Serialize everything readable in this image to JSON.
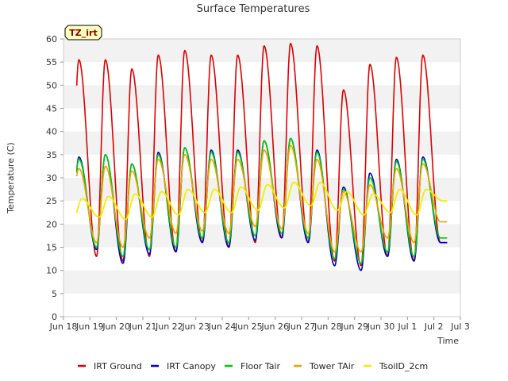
{
  "chart_data": {
    "type": "line",
    "title": "Surface Temperatures",
    "xlabel": "Time",
    "ylabel": "Temperature (C)",
    "badge": "TZ_irt",
    "ylim": [
      0,
      60
    ],
    "yticks": [
      0,
      5,
      10,
      15,
      20,
      25,
      30,
      35,
      40,
      45,
      50,
      55,
      60
    ],
    "xlim": [
      0,
      15
    ],
    "xticks": [
      {
        "x": 0,
        "label": "Jun 18"
      },
      {
        "x": 1,
        "label": "Jun 19"
      },
      {
        "x": 2,
        "label": "Jun 20"
      },
      {
        "x": 3,
        "label": "Jun 21"
      },
      {
        "x": 4,
        "label": "Jun 22"
      },
      {
        "x": 5,
        "label": "Jun 23"
      },
      {
        "x": 6,
        "label": "Jun 24"
      },
      {
        "x": 7,
        "label": "Jun 25"
      },
      {
        "x": 8,
        "label": "Jun 26"
      },
      {
        "x": 9,
        "label": "Jun 27"
      },
      {
        "x": 10,
        "label": "Jun 28"
      },
      {
        "x": 11,
        "label": "Jun 29"
      },
      {
        "x": 12,
        "label": "Jun 30"
      },
      {
        "x": 13,
        "label": "Jul 1"
      },
      {
        "x": 14,
        "label": "Jul 2"
      },
      {
        "x": 15,
        "label": "Jul 3"
      }
    ],
    "grid": true,
    "legend_position": "bottom",
    "series": [
      {
        "name": "IRT Ground",
        "color": "#e00000",
        "width": 1.6,
        "daily_min": [
          15,
          13,
          12,
          13,
          14,
          16,
          15,
          16,
          17,
          16,
          12,
          11,
          13,
          12,
          16
        ],
        "daily_max": [
          55.5,
          55.5,
          53.5,
          56.5,
          57.5,
          56.5,
          56.5,
          58.5,
          59,
          58.5,
          49,
          54.5,
          56,
          56.5
        ]
      },
      {
        "name": "IRT Canopy",
        "color": "#0000cc",
        "width": 1.6,
        "daily_min": [
          12,
          14.5,
          11.5,
          13.5,
          14,
          16,
          15,
          16.5,
          17,
          16,
          11,
          10,
          13,
          12,
          16
        ],
        "daily_max": [
          34.5,
          35,
          33,
          35.5,
          36.5,
          36,
          36,
          38,
          38.5,
          36,
          28,
          31,
          34,
          34.5
        ]
      },
      {
        "name": "Floor Tair",
        "color": "#00cc00",
        "width": 1.6,
        "daily_min": [
          13,
          15,
          13,
          14.5,
          15,
          17,
          16,
          17.5,
          18,
          17,
          12.5,
          11.5,
          14,
          13,
          17
        ],
        "daily_max": [
          34,
          35,
          33,
          35,
          36.5,
          35.5,
          35.5,
          38,
          38.5,
          35.5,
          27.5,
          30,
          33.5,
          34
        ]
      },
      {
        "name": "Tower TAir",
        "color": "#f0a000",
        "width": 1.6,
        "daily_min": [
          20,
          16,
          15,
          17,
          18,
          18.5,
          18,
          19.5,
          19,
          18,
          14,
          14,
          17,
          16,
          20.5
        ],
        "daily_max": [
          32,
          32.5,
          31.5,
          34,
          35,
          34,
          34,
          36,
          37,
          34,
          27,
          28.5,
          32,
          33
        ]
      },
      {
        "name": "TsoilD_2cm",
        "color": "#f0f000",
        "width": 1.8,
        "daily_min": [
          20.5,
          21.5,
          21,
          21.5,
          22,
          22.5,
          22.5,
          23,
          23.5,
          24,
          23,
          22,
          22.5,
          22,
          25
        ],
        "daily_max": [
          25.5,
          26,
          26.5,
          27,
          27.5,
          27.5,
          28,
          28.5,
          29,
          29,
          27,
          26.5,
          27.5,
          27.5
        ]
      }
    ]
  }
}
